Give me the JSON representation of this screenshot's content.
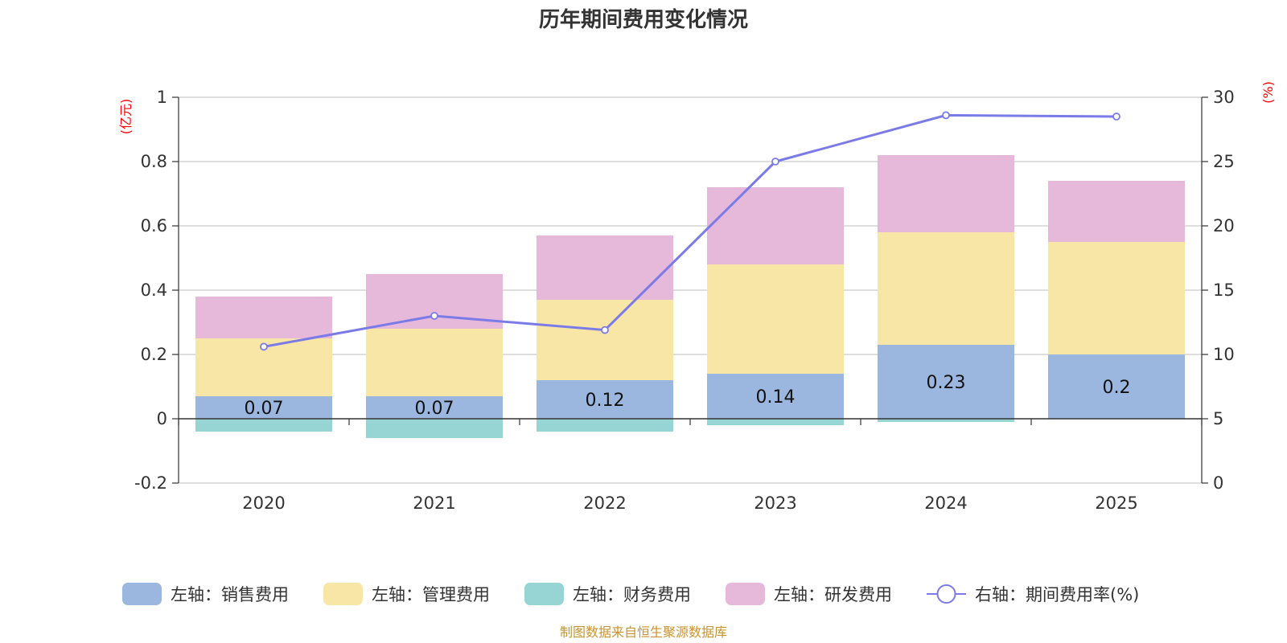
{
  "chart_data": {
    "type": "bar",
    "stacked": true,
    "title": "历年期间费用变化情况",
    "categories": [
      "2020",
      "2021",
      "2022",
      "2023",
      "2024",
      "2025"
    ],
    "left_axis": {
      "unit": "(亿元)",
      "min": -0.2,
      "max": 1,
      "ticks": [
        "-0.2",
        "0",
        "0.2",
        "0.4",
        "0.6",
        "0.8",
        "1"
      ]
    },
    "right_axis": {
      "unit": "(%)",
      "min": 0,
      "max": 30,
      "ticks": [
        "0",
        "5",
        "10",
        "15",
        "20",
        "25",
        "30"
      ]
    },
    "series": [
      {
        "name": "左轴：销售费用",
        "type": "bar",
        "color": "#9bb7e0",
        "values": [
          0.07,
          0.07,
          0.12,
          0.14,
          0.23,
          0.2
        ],
        "labels": [
          "0.07",
          "0.07",
          "0.12",
          "0.14",
          "0.23",
          "0.2"
        ]
      },
      {
        "name": "左轴：管理费用",
        "type": "bar",
        "color": "#f7e6a6",
        "values": [
          0.18,
          0.21,
          0.25,
          0.34,
          0.35,
          0.35
        ]
      },
      {
        "name": "左轴：财务费用",
        "type": "bar",
        "color": "#97d4d4",
        "values": [
          -0.04,
          -0.06,
          -0.04,
          -0.02,
          -0.01,
          0
        ]
      },
      {
        "name": "左轴：研发费用",
        "type": "bar",
        "color": "#e6b8d9",
        "values": [
          0.13,
          0.17,
          0.2,
          0.24,
          0.24,
          0.19
        ]
      },
      {
        "name": "右轴：期间费用率(%)",
        "type": "line",
        "color": "#7b7be8",
        "values": [
          10.6,
          13.0,
          11.9,
          25.0,
          28.6,
          28.5
        ]
      }
    ],
    "source": "制图数据来自恒生聚源数据库"
  }
}
